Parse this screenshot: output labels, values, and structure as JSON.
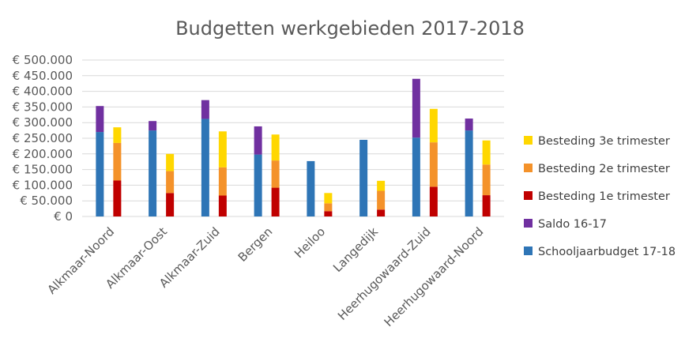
{
  "chart_data": {
    "type": "bar",
    "stacked": true,
    "title": "Budgetten werkgebieden 2017-2018",
    "xlabel": "",
    "ylabel": "",
    "ylim": [
      0,
      500000
    ],
    "yticks": [
      0,
      50000,
      100000,
      150000,
      200000,
      250000,
      300000,
      350000,
      400000,
      450000,
      500000
    ],
    "ytick_labels": [
      "€ 0",
      "€ 50.000",
      "€ 100.000",
      "€ 150.000",
      "€ 200.000",
      "€ 250.000",
      "€ 300.000",
      "€ 350.000",
      "€ 400.000",
      "€ 450.000",
      "€ 500.000"
    ],
    "grid": true,
    "legend_position": "right",
    "categories": [
      "Alkmaar-Noord",
      "Alkmaar-Oost",
      "Alkmaar-Zuid",
      "Bergen",
      "Heiloo",
      "Langedijk",
      "Heerhugowaard-Zuid",
      "Heerhugowaard-Noord"
    ],
    "stacks": [
      {
        "stack": "budget",
        "series": [
          {
            "name": "Schooljaarbudget 17-18",
            "color": "#2e75b6",
            "values": [
              270000,
              275000,
              312000,
              198000,
              177000,
              245000,
              252000,
              275000
            ]
          },
          {
            "name": "Saldo 16-17",
            "color": "#7030a0",
            "values": [
              83000,
              30000,
              60000,
              90000,
              0,
              0,
              188000,
              38000
            ]
          }
        ]
      },
      {
        "stack": "besteding",
        "series": [
          {
            "name": "Besteding 1e trimester",
            "color": "#c00000",
            "values": [
              115000,
              75000,
              67000,
              92000,
              17000,
              22000,
              95000,
              68000
            ]
          },
          {
            "name": "Besteding 2e trimester",
            "color": "#f4922a",
            "values": [
              120000,
              70000,
              90000,
              87000,
              25000,
              60000,
              142000,
              98000
            ]
          },
          {
            "name": "Besteding 3e trimester",
            "color": "#ffd700",
            "values": [
              50000,
              55000,
              115000,
              83000,
              33000,
              32000,
              107000,
              77000
            ]
          }
        ]
      }
    ],
    "legend": [
      {
        "label": "Besteding 3e trimester",
        "color": "#ffd700"
      },
      {
        "label": "Besteding 2e trimester",
        "color": "#f4922a"
      },
      {
        "label": "Besteding 1e trimester",
        "color": "#c00000"
      },
      {
        "label": "Saldo 16-17",
        "color": "#7030a0"
      },
      {
        "label": "Schooljaarbudget 17-18",
        "color": "#2e75b6"
      }
    ]
  }
}
